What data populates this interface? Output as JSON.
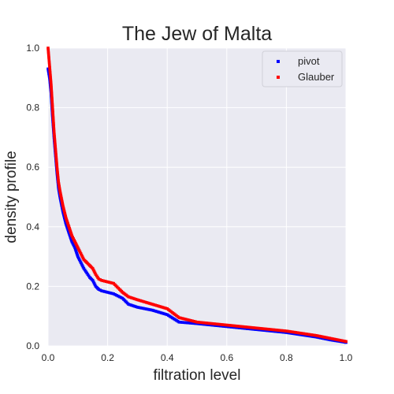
{
  "chart_data": {
    "type": "scatter",
    "title": "The Jew of Malta",
    "xlabel": "filtration level",
    "ylabel": "density profile",
    "xlim": [
      0.0,
      1.0
    ],
    "ylim": [
      0.0,
      1.0
    ],
    "xticks": [
      "0.0",
      "0.2",
      "0.4",
      "0.6",
      "0.8",
      "1.0"
    ],
    "yticks": [
      "0.0",
      "0.2",
      "0.4",
      "0.6",
      "0.8",
      "1.0"
    ],
    "grid": true,
    "legend_position": "top-right",
    "series": [
      {
        "name": "pivot",
        "color": "#0000ff",
        "x": [
          0.0,
          0.005,
          0.01,
          0.015,
          0.02,
          0.025,
          0.03,
          0.035,
          0.04,
          0.05,
          0.06,
          0.07,
          0.08,
          0.09,
          0.1,
          0.11,
          0.12,
          0.13,
          0.14,
          0.15,
          0.16,
          0.17,
          0.18,
          0.2,
          0.22,
          0.24,
          0.25,
          0.27,
          0.3,
          0.35,
          0.4,
          0.44,
          0.5,
          0.6,
          0.7,
          0.8,
          0.9,
          0.95,
          1.0
        ],
        "y": [
          0.93,
          0.9,
          0.85,
          0.77,
          0.7,
          0.64,
          0.58,
          0.53,
          0.5,
          0.45,
          0.41,
          0.38,
          0.35,
          0.33,
          0.3,
          0.28,
          0.26,
          0.245,
          0.23,
          0.22,
          0.2,
          0.19,
          0.185,
          0.18,
          0.175,
          0.165,
          0.16,
          0.14,
          0.13,
          0.12,
          0.105,
          0.08,
          0.075,
          0.065,
          0.055,
          0.045,
          0.03,
          0.02,
          0.012
        ]
      },
      {
        "name": "Glauber",
        "color": "#ff0000",
        "x": [
          0.0,
          0.005,
          0.01,
          0.015,
          0.02,
          0.025,
          0.03,
          0.035,
          0.04,
          0.05,
          0.06,
          0.07,
          0.08,
          0.09,
          0.1,
          0.11,
          0.12,
          0.13,
          0.14,
          0.15,
          0.16,
          0.17,
          0.18,
          0.2,
          0.22,
          0.24,
          0.25,
          0.27,
          0.3,
          0.35,
          0.4,
          0.44,
          0.5,
          0.6,
          0.7,
          0.8,
          0.9,
          0.95,
          1.0
        ],
        "y": [
          1.0,
          0.94,
          0.88,
          0.8,
          0.72,
          0.66,
          0.6,
          0.55,
          0.52,
          0.47,
          0.43,
          0.4,
          0.37,
          0.35,
          0.33,
          0.31,
          0.29,
          0.28,
          0.27,
          0.26,
          0.24,
          0.225,
          0.22,
          0.215,
          0.21,
          0.19,
          0.18,
          0.165,
          0.155,
          0.14,
          0.125,
          0.095,
          0.08,
          0.07,
          0.06,
          0.05,
          0.035,
          0.025,
          0.015
        ]
      }
    ]
  }
}
